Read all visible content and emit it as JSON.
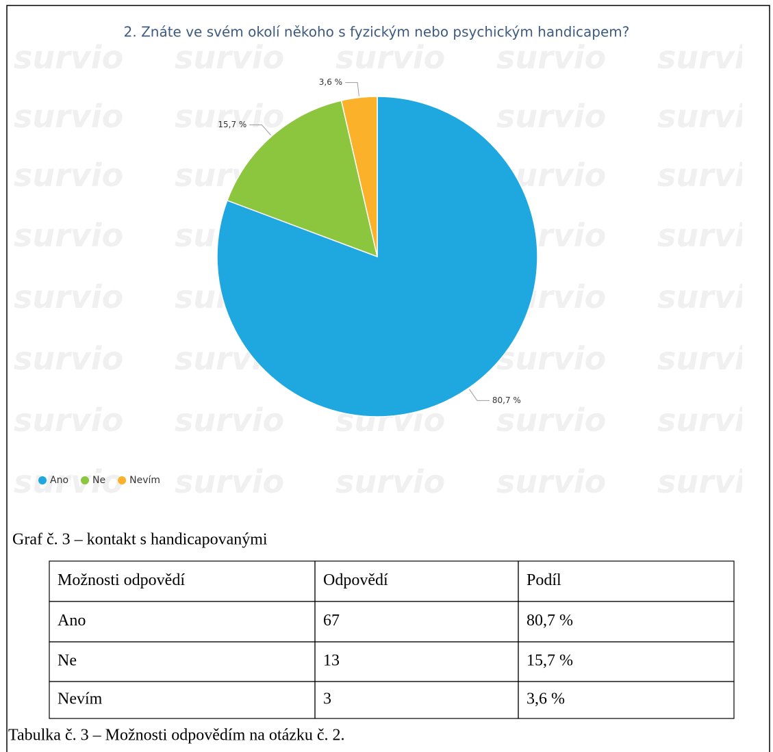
{
  "watermark": "survio",
  "chart_data": {
    "type": "pie",
    "title": "2. Znáte ve svém okolí někoho s fyzickým nebo psychickým handicapem?",
    "categories": [
      "Ano",
      "Ne",
      "Nevím"
    ],
    "values": [
      80.7,
      15.7,
      3.6
    ],
    "value_labels": [
      "80,7 %",
      "15,7 %",
      "3,6 %"
    ],
    "colors": [
      "#1fa8e0",
      "#8cc63f",
      "#fbb12a"
    ],
    "legend": "bottom-left"
  },
  "figure_caption": "Graf č. 3 – kontakt s handicapovanými",
  "table": {
    "header": [
      "Možnosti odpovědí",
      "Odpovědí",
      "Podíl"
    ],
    "rows": [
      [
        "Ano",
        67,
        "80,7 %"
      ],
      [
        "Ne",
        13,
        "15,7 %"
      ],
      [
        "Nevím",
        3,
        "3,6 %"
      ]
    ]
  },
  "table_caption": "Tabulka č. 3 – Možnosti odpovědím na otázku č. 2."
}
